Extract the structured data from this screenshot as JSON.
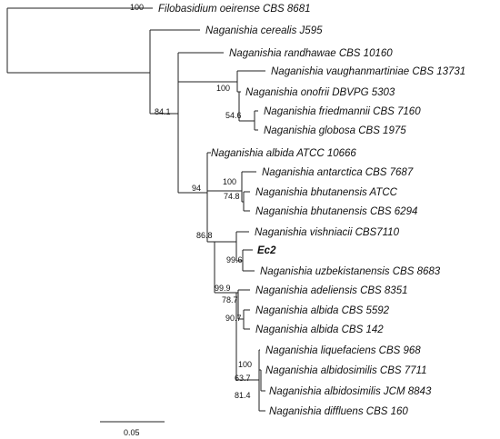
{
  "tree": {
    "taxa": [
      {
        "id": "filobasidium",
        "label": "Filobasidium oeirense CBS 8681"
      },
      {
        "id": "cerealis",
        "label": "Naganishia cerealis J595"
      },
      {
        "id": "randhawae",
        "label": "Naganishia randhawae CBS 10160"
      },
      {
        "id": "vaughanmartiniae",
        "label": "Naganishia vaughanmartiniae CBS 13731"
      },
      {
        "id": "onofrii",
        "label": "Naganishia onofrii DBVPG 5303"
      },
      {
        "id": "friedmannii",
        "label": "Naganishia friedmannii CBS 7160"
      },
      {
        "id": "globosa",
        "label": "Naganishia globosa CBS 1975"
      },
      {
        "id": "albida_atcc",
        "label": "Naganishia albida ATCC 10666"
      },
      {
        "id": "antarctica",
        "label": "Naganishia antarctica CBS 7687"
      },
      {
        "id": "bhutanensis_atcc",
        "label": "Naganishia bhutanensis ATCC"
      },
      {
        "id": "bhutanensis_cbs",
        "label": "Naganishia bhutanensis CBS 6294"
      },
      {
        "id": "vishniacii",
        "label": "Naganishia vishniacii CBS7110"
      },
      {
        "id": "ec2",
        "label": "Ec2"
      },
      {
        "id": "uzbekistanensis",
        "label": "Naganishia uzbekistanensis CBS 8683"
      },
      {
        "id": "adeliensis",
        "label": "Naganishia adeliensis CBS 8351"
      },
      {
        "id": "albida_5592",
        "label": "Naganishia albida CBS 5592"
      },
      {
        "id": "albida_142",
        "label": "Naganishia albida CBS 142"
      },
      {
        "id": "liquefaciens",
        "label": "Naganishia liquefaciens CBS 968"
      },
      {
        "id": "albidosimilis_cbs",
        "label": "Naganishia albidosimilis CBS 7711"
      },
      {
        "id": "albidosimilis_jcm",
        "label": "Naganishia albidosimilis JCM 8843"
      },
      {
        "id": "diffluens",
        "label": "Naganishia diffluens CBS 160"
      }
    ],
    "support_values": [
      {
        "id": "s_filo",
        "value": "100"
      },
      {
        "id": "s_ingroup",
        "value": "84.1"
      },
      {
        "id": "s_onofrii",
        "value": "100"
      },
      {
        "id": "s_friedglob",
        "value": "54.6"
      },
      {
        "id": "s_94",
        "value": "94"
      },
      {
        "id": "s_antarctica",
        "value": "100"
      },
      {
        "id": "s_bhutan",
        "value": "74.8"
      },
      {
        "id": "s_86",
        "value": "86.8"
      },
      {
        "id": "s_ec2",
        "value": "99.6"
      },
      {
        "id": "s_999",
        "value": "99.9"
      },
      {
        "id": "s_787",
        "value": "78.7"
      },
      {
        "id": "s_907",
        "value": "90.7"
      },
      {
        "id": "s_liq",
        "value": "100"
      },
      {
        "id": "s_637",
        "value": "63.7"
      },
      {
        "id": "s_814",
        "value": "81.4"
      }
    ],
    "scale_bar": {
      "label": "0.05",
      "length_units": 0.05
    }
  }
}
